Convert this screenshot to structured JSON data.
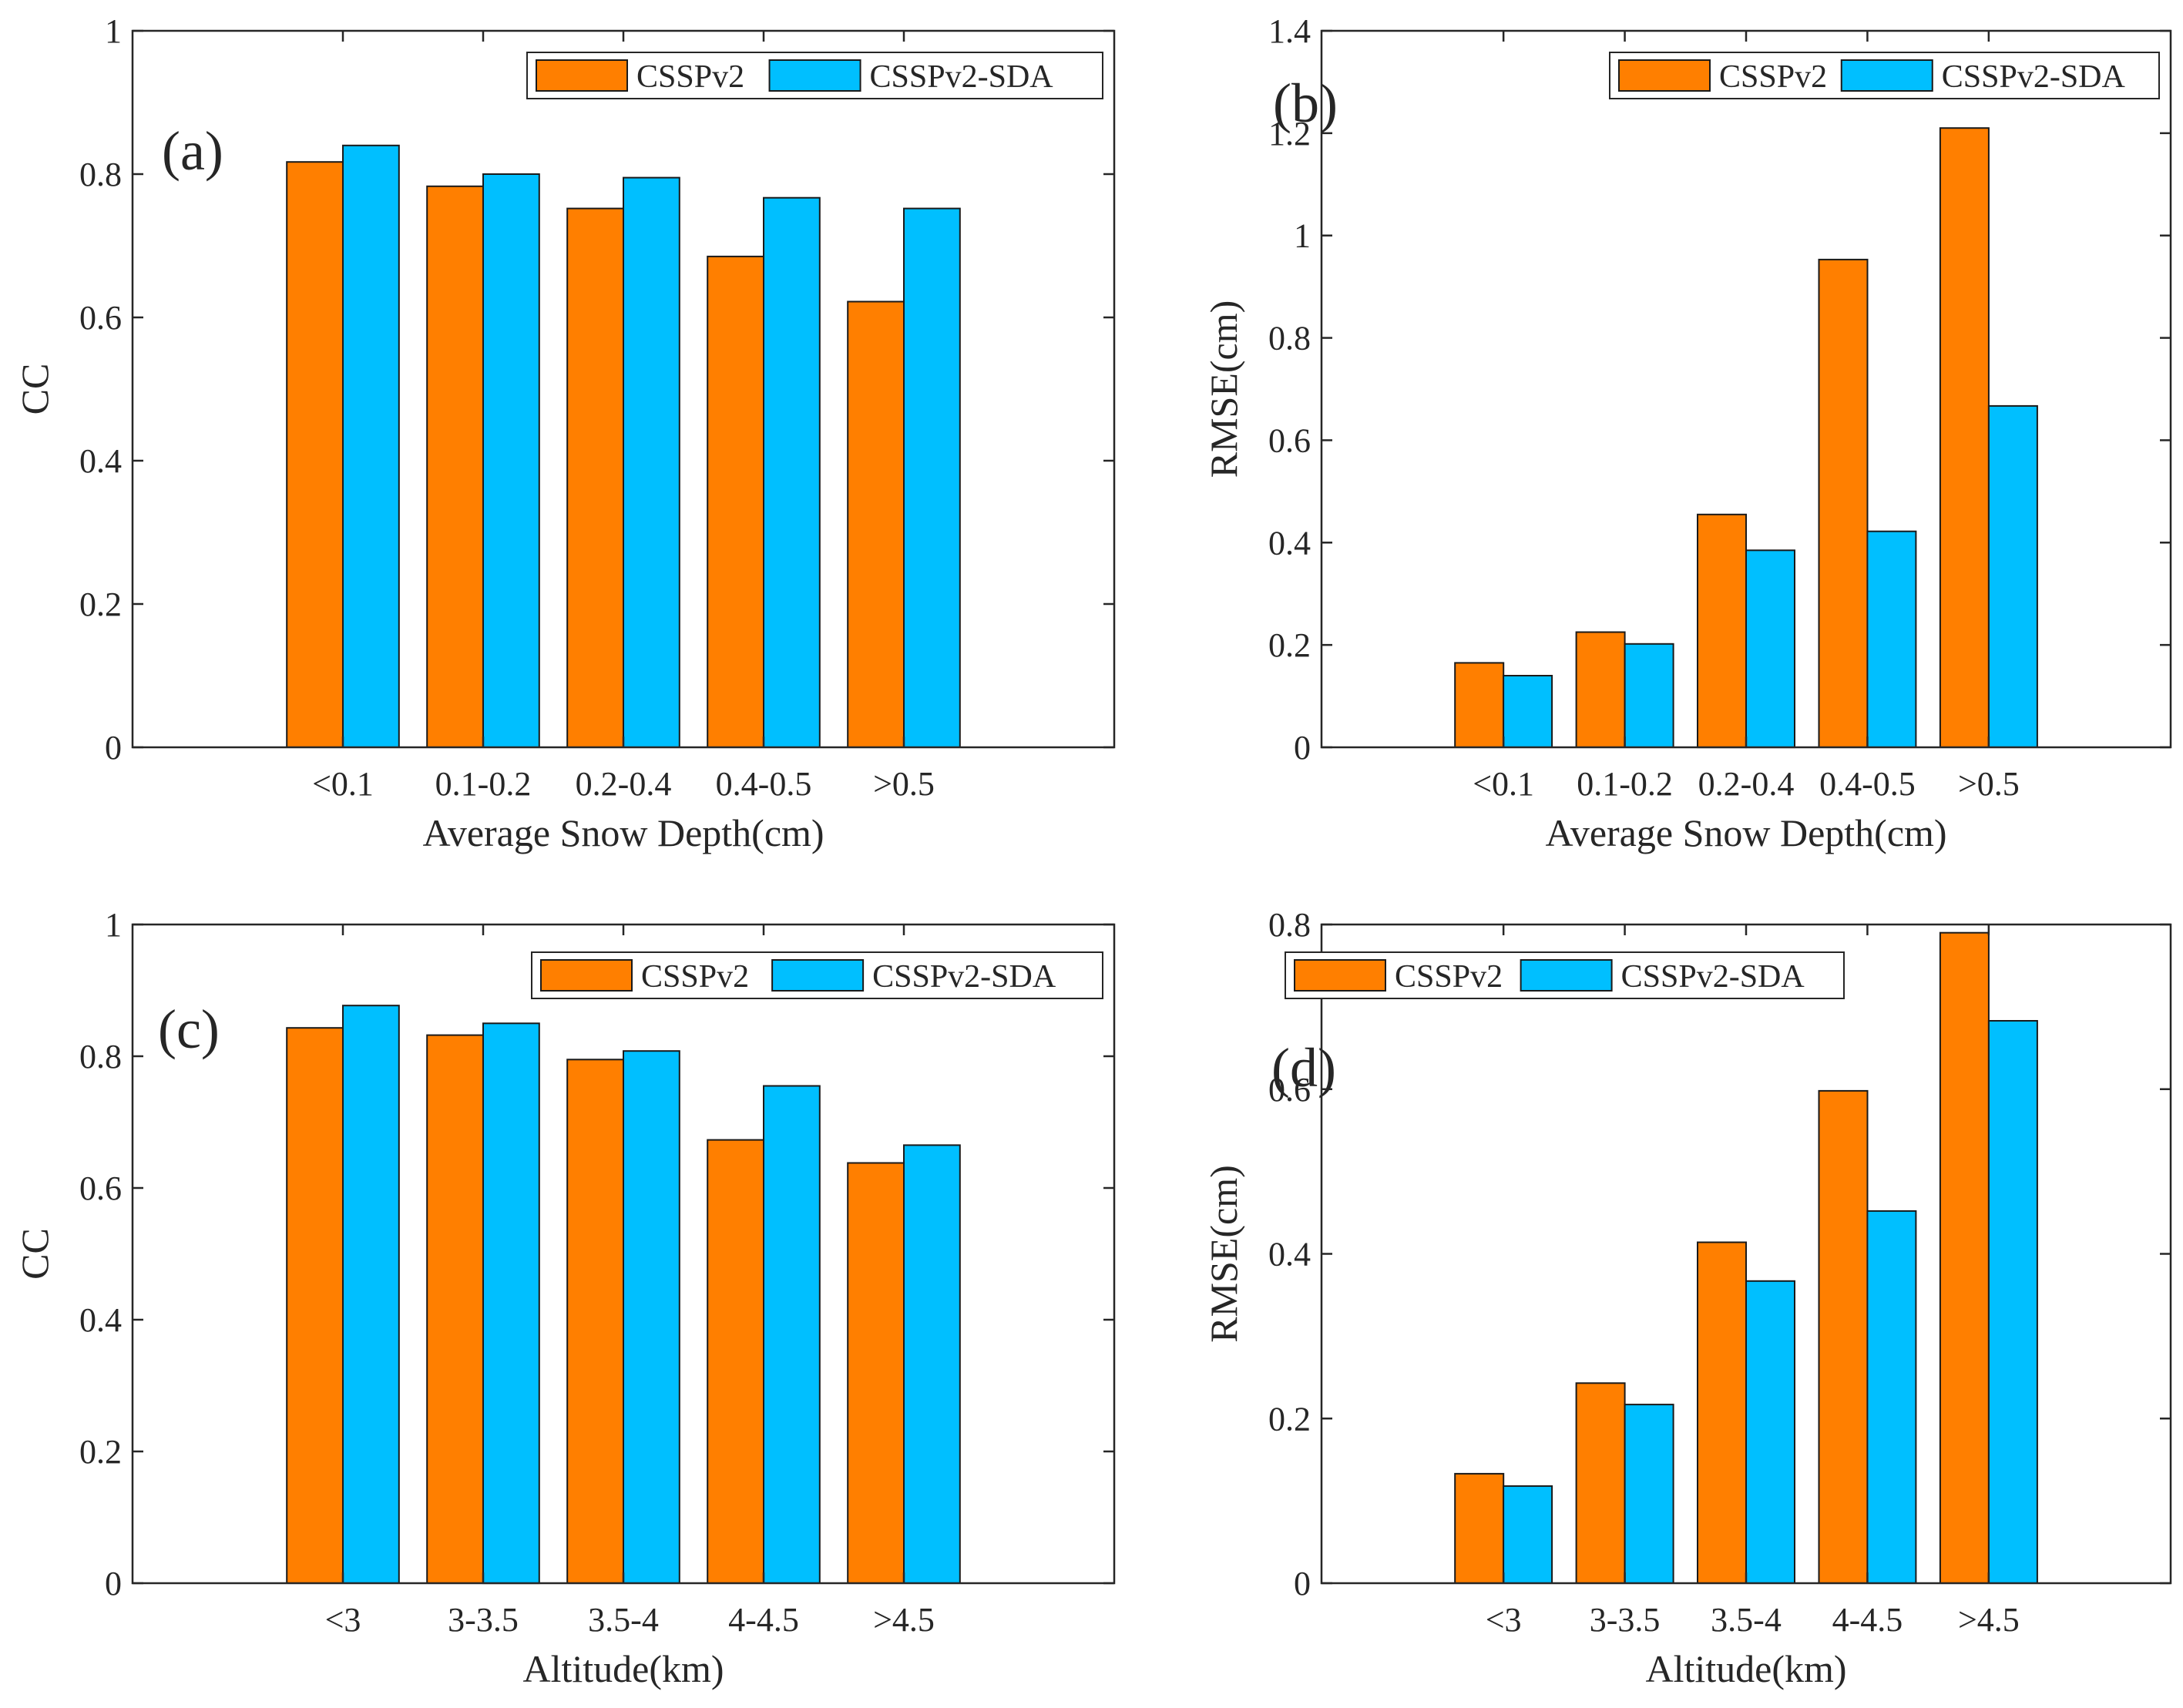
{
  "colors": {
    "series_a": "#FF7F00",
    "series_b": "#00BFFF",
    "axis": "#262626",
    "background": "#FFFFFF"
  },
  "chart_data": [
    {
      "type": "bar",
      "panel_label": "(a)",
      "categories": [
        "<0.1",
        "0.1-0.2",
        "0.2-0.4",
        "0.4-0.5",
        ">0.5"
      ],
      "series": [
        {
          "name": "CSSPv2",
          "values": [
            0.817,
            0.783,
            0.752,
            0.685,
            0.622
          ]
        },
        {
          "name": "CSSPv2-SDA",
          "values": [
            0.84,
            0.8,
            0.795,
            0.767,
            0.752
          ]
        }
      ],
      "xlabel": "Average Snow Depth(cm)",
      "ylabel": "CC",
      "ylim": [
        0,
        1
      ],
      "yticks": [
        0,
        0.2,
        0.4,
        0.6,
        0.8,
        1
      ],
      "ytick_labels": [
        "0",
        "0.2",
        "0.4",
        "0.6",
        "0.8",
        "1"
      ],
      "legend_position": "top-right"
    },
    {
      "type": "bar",
      "panel_label": "(b)",
      "categories": [
        "<0.1",
        "0.1-0.2",
        "0.2-0.4",
        "0.4-0.5",
        ">0.5"
      ],
      "series": [
        {
          "name": "CSSPv2",
          "values": [
            0.165,
            0.225,
            0.455,
            0.953,
            1.21
          ]
        },
        {
          "name": "CSSPv2-SDA",
          "values": [
            0.14,
            0.202,
            0.385,
            0.422,
            0.667
          ]
        }
      ],
      "xlabel": "Average Snow Depth(cm)",
      "ylabel": "RMSE(cm)",
      "ylim": [
        0,
        1.4
      ],
      "yticks": [
        0,
        0.2,
        0.4,
        0.6,
        0.8,
        1,
        1.2,
        1.4
      ],
      "ytick_labels": [
        "0",
        "0.2",
        "0.4",
        "0.6",
        "0.8",
        "1",
        "1.2",
        "1.4"
      ],
      "legend_position": "top-right"
    },
    {
      "type": "bar",
      "panel_label": "(c)",
      "categories": [
        "<3",
        "3-3.5",
        "3.5-4",
        "4-4.5",
        ">4.5"
      ],
      "series": [
        {
          "name": "CSSPv2",
          "values": [
            0.843,
            0.832,
            0.795,
            0.673,
            0.638
          ]
        },
        {
          "name": "CSSPv2-SDA",
          "values": [
            0.877,
            0.85,
            0.808,
            0.755,
            0.665
          ]
        }
      ],
      "xlabel": "Altitude(km)",
      "ylabel": "CC",
      "ylim": [
        0,
        1
      ],
      "yticks": [
        0,
        0.2,
        0.4,
        0.6,
        0.8,
        1
      ],
      "ytick_labels": [
        "0",
        "0.2",
        "0.4",
        "0.6",
        "0.8",
        "1"
      ],
      "legend_position": "top-right"
    },
    {
      "type": "bar",
      "panel_label": "(d)",
      "categories": [
        "<3",
        "3-3.5",
        "3.5-4",
        "4-4.5",
        ">4.5"
      ],
      "series": [
        {
          "name": "CSSPv2",
          "values": [
            0.133,
            0.243,
            0.414,
            0.598,
            0.79
          ]
        },
        {
          "name": "CSSPv2-SDA",
          "values": [
            0.118,
            0.217,
            0.367,
            0.452,
            0.683
          ]
        }
      ],
      "xlabel": "Altitude(km)",
      "ylabel": "RMSE(cm)",
      "ylim": [
        0,
        0.8
      ],
      "yticks": [
        0,
        0.2,
        0.4,
        0.6,
        0.8
      ],
      "ytick_labels": [
        "0",
        "0.2",
        "0.4",
        "0.6",
        "0.8"
      ],
      "legend_position": "top-left"
    }
  ]
}
